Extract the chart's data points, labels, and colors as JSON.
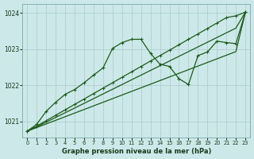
{
  "bg_color": "#cce8e8",
  "grid_color": "#aacccc",
  "line_color": "#1a5c1a",
  "xlabel": "Graphe pression niveau de la mer (hPa)",
  "ylim": [
    1020.55,
    1024.25
  ],
  "xlim": [
    -0.5,
    23.5
  ],
  "yticks": [
    1021,
    1022,
    1023,
    1024
  ],
  "xticks": [
    0,
    1,
    2,
    3,
    4,
    5,
    6,
    7,
    8,
    9,
    10,
    11,
    12,
    13,
    14,
    15,
    16,
    17,
    18,
    19,
    20,
    21,
    22,
    23
  ],
  "zigzag_x": [
    0,
    1,
    2,
    3,
    4,
    5,
    6,
    7,
    8,
    9,
    10,
    11,
    12,
    13,
    14,
    15,
    16,
    17,
    18,
    19,
    20,
    21,
    22,
    23
  ],
  "zigzag_y": [
    1020.73,
    1020.92,
    1021.28,
    1021.53,
    1021.75,
    1021.88,
    1022.07,
    1022.28,
    1022.48,
    1023.02,
    1023.18,
    1023.27,
    1023.27,
    1022.88,
    1022.58,
    1022.52,
    1022.18,
    1022.02,
    1022.82,
    1022.92,
    1023.22,
    1023.18,
    1023.15,
    1024.02
  ],
  "line1_x": [
    0,
    1,
    2,
    3,
    4,
    5,
    6,
    7,
    8,
    9,
    10,
    11,
    12,
    13,
    14,
    15,
    16,
    17,
    18,
    19,
    20,
    21,
    22,
    23
  ],
  "line1_y": [
    1020.73,
    1020.87,
    1021.02,
    1021.17,
    1021.32,
    1021.47,
    1021.62,
    1021.77,
    1021.92,
    1022.07,
    1022.22,
    1022.37,
    1022.52,
    1022.67,
    1022.82,
    1022.97,
    1023.12,
    1023.27,
    1023.42,
    1023.57,
    1023.72,
    1023.87,
    1023.92,
    1024.02
  ],
  "line2_x": [
    0,
    1,
    2,
    3,
    4,
    5,
    6,
    7,
    8,
    9,
    10,
    11,
    12,
    13,
    14,
    15,
    16,
    17,
    18,
    19,
    20,
    21,
    22,
    23
  ],
  "line2_y": [
    1020.73,
    1020.85,
    1020.98,
    1021.11,
    1021.24,
    1021.37,
    1021.5,
    1021.63,
    1021.76,
    1021.89,
    1022.02,
    1022.15,
    1022.28,
    1022.41,
    1022.54,
    1022.67,
    1022.8,
    1022.93,
    1023.06,
    1023.19,
    1023.32,
    1023.45,
    1023.58,
    1024.02
  ],
  "line3_x": [
    0,
    1,
    2,
    3,
    4,
    5,
    6,
    7,
    8,
    9,
    10,
    11,
    12,
    13,
    14,
    15,
    16,
    17,
    18,
    19,
    20,
    21,
    22,
    23
  ],
  "line3_y": [
    1020.73,
    1020.83,
    1020.93,
    1021.03,
    1021.13,
    1021.23,
    1021.33,
    1021.43,
    1021.53,
    1021.63,
    1021.73,
    1021.83,
    1021.93,
    1022.03,
    1022.13,
    1022.23,
    1022.33,
    1022.43,
    1022.53,
    1022.63,
    1022.73,
    1022.83,
    1022.93,
    1024.02
  ]
}
